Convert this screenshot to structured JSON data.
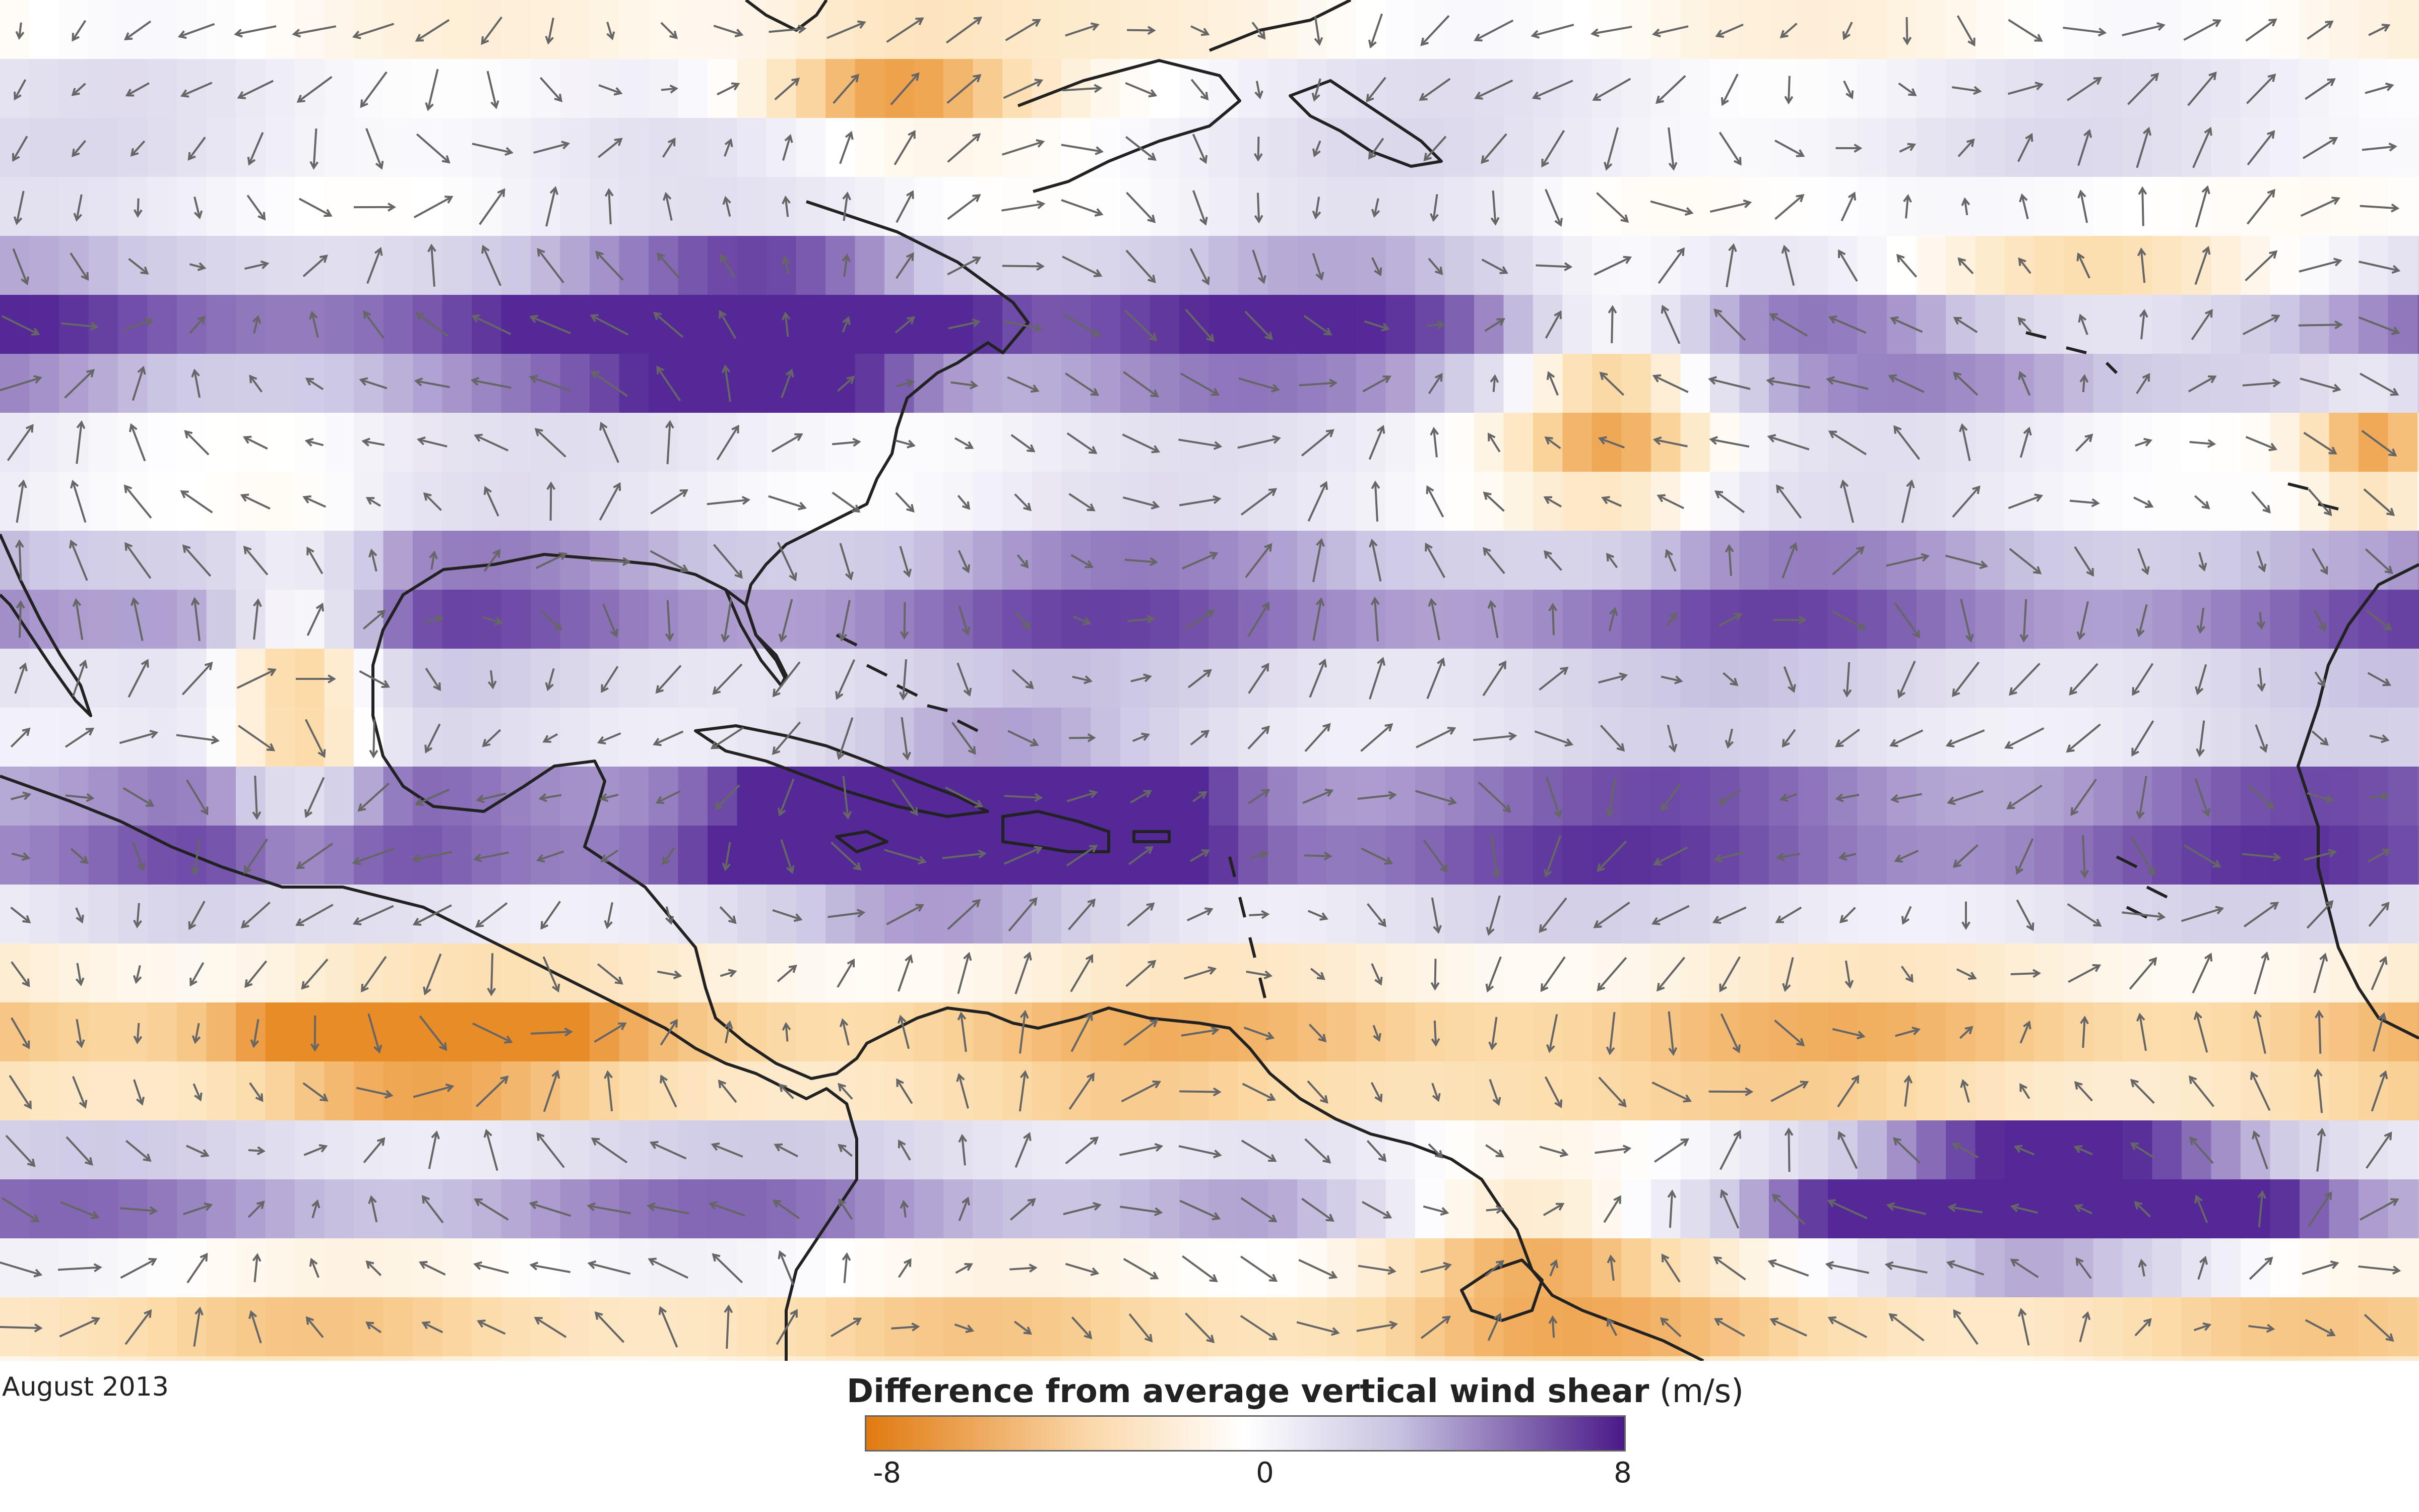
{
  "map": {
    "date": "August 2013",
    "legend": {
      "title": "Difference from average vertical wind shear",
      "unit": "(m/s)",
      "min_label": "-8",
      "mid_label": "0",
      "max_label": "8",
      "min_value": -8,
      "max_value": 8,
      "negative_color": "#e07a10",
      "neutral_color": "#ffffff",
      "positive_color": "#4a1a88"
    },
    "vector_color": "#666666",
    "coastline_color": "#222222"
  }
}
